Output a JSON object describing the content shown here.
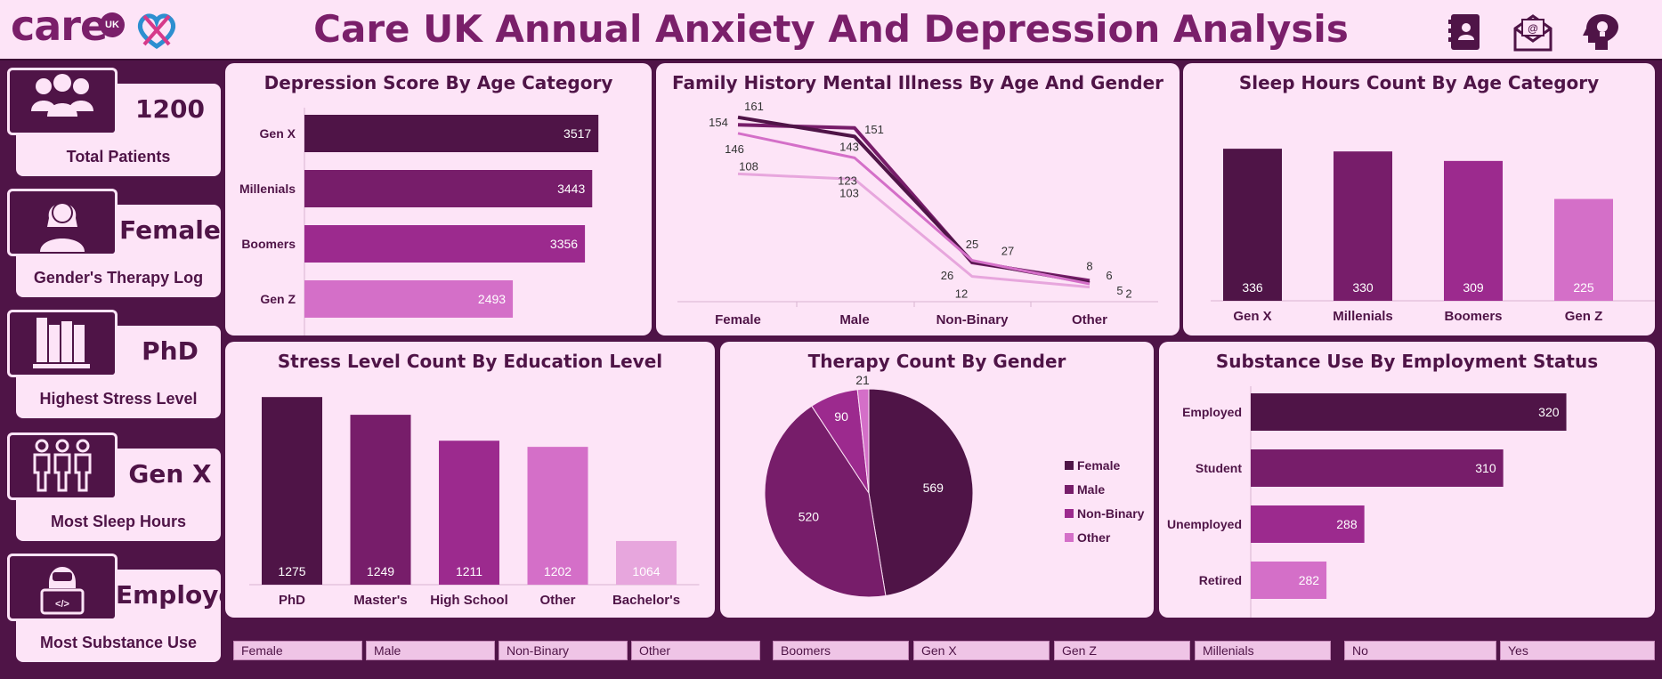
{
  "header": {
    "logo_text": "care",
    "logo_badge": "UK",
    "title": "Care UK Annual Anxiety And Depression Analysis",
    "icons": [
      "contact-book-icon",
      "email-icon",
      "mind-bulb-icon"
    ]
  },
  "kpis": [
    {
      "value": "1200",
      "label": "Total Patients",
      "icon": "people-group-icon"
    },
    {
      "value": "Female",
      "label": "Gender's Therapy Log",
      "icon": "woman-icon"
    },
    {
      "value": "PhD",
      "label": "Highest Stress Level",
      "icon": "books-icon"
    },
    {
      "value": "Gen X",
      "label": "Most Sleep Hours",
      "icon": "family-icon"
    },
    {
      "value": "Employed",
      "label": "Most Substance Use",
      "icon": "developer-icon"
    }
  ],
  "colors": {
    "background": "#4f1447",
    "panel": "#fde4f7",
    "shade1": "#4f1447",
    "shade2": "#771d6a",
    "shade3": "#9c2a8e",
    "shade4": "#d46fc8",
    "shade5": "#e7a6dd"
  },
  "chart_data": [
    {
      "id": "depression",
      "type": "bar",
      "orientation": "horizontal",
      "title": "Depression Score By Age Category",
      "categories": [
        "Gen X",
        "Millenials",
        "Boomers",
        "Gen Z"
      ],
      "values": [
        3517,
        3443,
        3356,
        2493
      ],
      "xlim": [
        0,
        3600
      ]
    },
    {
      "id": "family",
      "type": "line",
      "title": "Family History Mental Illness By Age And Gender",
      "categories": [
        "Female",
        "Male",
        "Non-Binary",
        "Other"
      ],
      "series": [
        {
          "values": [
            154,
            151,
            25,
            8
          ]
        },
        {
          "values": [
            161,
            143,
            26,
            6
          ]
        },
        {
          "values": [
            146,
            123,
            27,
            5
          ]
        },
        {
          "values": [
            108,
            103,
            12,
            2
          ]
        }
      ],
      "ylim": [
        0,
        170
      ]
    },
    {
      "id": "sleep",
      "type": "bar",
      "orientation": "vertical",
      "title": "Sleep Hours Count By Age Category",
      "categories": [
        "Gen X",
        "Millenials",
        "Boomers",
        "Gen Z"
      ],
      "values": [
        336,
        330,
        309,
        225
      ],
      "ylim": [
        0,
        350
      ]
    },
    {
      "id": "stress",
      "type": "bar",
      "orientation": "vertical",
      "title": "Stress Level Count By Education Level",
      "categories": [
        "PhD",
        "Master's",
        "High School",
        "Other",
        "Bachelor's"
      ],
      "values": [
        1275,
        1249,
        1211,
        1202,
        1064
      ],
      "ylim": [
        1000,
        1300
      ]
    },
    {
      "id": "therapy",
      "type": "pie",
      "title": "Therapy Count By Gender",
      "categories": [
        "Female",
        "Male",
        "Non-Binary",
        "Other"
      ],
      "values": [
        569,
        520,
        90,
        21
      ],
      "legend": "right"
    },
    {
      "id": "substance",
      "type": "bar",
      "orientation": "horizontal",
      "title": "Substance Use By Employment Status",
      "categories": [
        "Employed",
        "Student",
        "Unemployed",
        "Retired"
      ],
      "values": [
        320,
        310,
        288,
        282
      ],
      "xlim": [
        270,
        325
      ]
    }
  ],
  "slicers": {
    "gender": [
      "Female",
      "Male",
      "Non-Binary",
      "Other"
    ],
    "age": [
      "Boomers",
      "Gen X",
      "Gen Z",
      "Millenials"
    ],
    "yesno": [
      "No",
      "Yes"
    ]
  }
}
